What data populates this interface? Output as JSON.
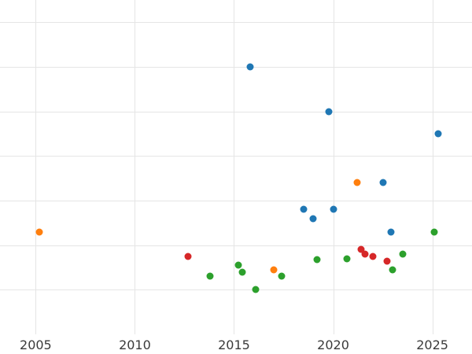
{
  "chart_data": {
    "type": "scatter",
    "title": "",
    "xlabel": "",
    "ylabel": "",
    "xlim": [
      2003.2,
      2027.0
    ],
    "ylim": [
      0,
      7.5
    ],
    "x_ticks": [
      "2005",
      "2010",
      "2015",
      "2020",
      "2025"
    ],
    "x_tick_values": [
      2005,
      2010,
      2015,
      2020,
      2025
    ],
    "y_gridline_values": [
      0,
      1,
      2,
      3,
      4,
      5,
      6,
      7
    ],
    "grid": true,
    "legend_position": "none",
    "series": [
      {
        "name": "blue",
        "color": "#1f77b4",
        "points": [
          [
            2015.8,
            6.0
          ],
          [
            2019.8,
            5.0
          ],
          [
            2025.3,
            4.5
          ],
          [
            2022.5,
            3.4
          ],
          [
            2018.5,
            2.8
          ],
          [
            2020.0,
            2.8
          ],
          [
            2019.0,
            2.6
          ],
          [
            2022.9,
            2.3
          ]
        ]
      },
      {
        "name": "orange",
        "color": "#ff7f0e",
        "points": [
          [
            2005.2,
            2.3
          ],
          [
            2021.2,
            3.4
          ],
          [
            2017.0,
            1.45
          ]
        ]
      },
      {
        "name": "green",
        "color": "#2ca02c",
        "points": [
          [
            2025.1,
            2.3
          ],
          [
            2020.7,
            1.7
          ],
          [
            2019.2,
            1.68
          ],
          [
            2023.5,
            1.8
          ],
          [
            2023.0,
            1.45
          ],
          [
            2015.2,
            1.55
          ],
          [
            2015.4,
            1.4
          ],
          [
            2013.8,
            1.3
          ],
          [
            2017.4,
            1.3
          ],
          [
            2016.1,
            1.0
          ]
        ]
      },
      {
        "name": "red",
        "color": "#d62728",
        "points": [
          [
            2012.7,
            1.75
          ],
          [
            2021.4,
            1.9
          ],
          [
            2021.6,
            1.8
          ],
          [
            2022.0,
            1.75
          ],
          [
            2022.7,
            1.65
          ]
        ]
      }
    ]
  },
  "style": {
    "background": "#ffffff",
    "grid_color": "#e5e5e5",
    "tick_label_color": "#3a3a3a"
  }
}
